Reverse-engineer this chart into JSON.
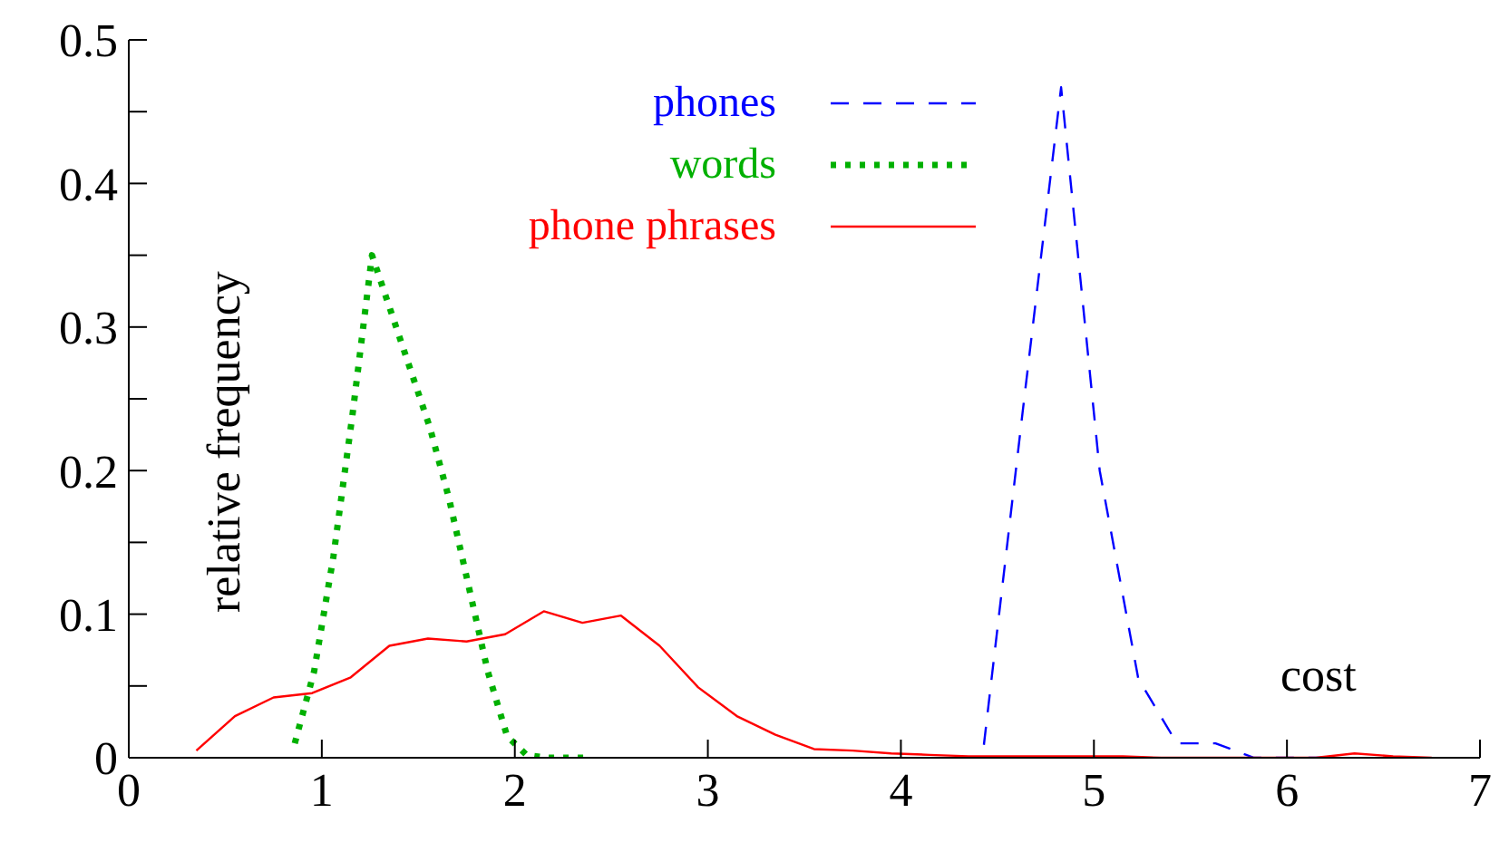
{
  "chart_data": {
    "type": "line",
    "xlabel": "cost",
    "ylabel": "relative frequency",
    "xlim": [
      0,
      7
    ],
    "xticks": [
      0,
      1,
      2,
      3,
      4,
      5,
      6,
      7
    ],
    "ylim": [
      0,
      0.5
    ],
    "yticks": [
      0,
      {
        "value": 0.05,
        "label": null
      },
      0.1,
      {
        "value": 0.15,
        "label": null
      },
      0.2,
      {
        "value": 0.25,
        "label": null
      },
      0.3,
      {
        "value": 0.35,
        "label": null
      },
      0.4,
      {
        "value": 0.45,
        "label": null
      },
      0.5
    ],
    "grid": false,
    "legend": "top",
    "marker": "none",
    "series": [
      {
        "name": "phones",
        "color": "#0000ff",
        "line_style": "dashed",
        "x": [
          4.43,
          4.63,
          4.83,
          5.03,
          5.23,
          5.43,
          5.63,
          5.83,
          6.03,
          6.23
        ],
        "values": [
          0.009,
          0.24,
          0.467,
          0.2,
          0.055,
          0.01,
          0.01,
          0,
          0,
          0
        ]
      },
      {
        "name": "words",
        "color": "#00b000",
        "line_style": "dotted",
        "x": [
          0.86,
          0.96,
          1.06,
          1.16,
          1.26,
          1.36,
          1.46,
          1.56,
          1.66,
          1.76,
          1.86,
          1.96,
          2.06,
          2.16,
          2.26,
          2.36
        ],
        "values": [
          0.01,
          0.06,
          0.14,
          0.24,
          0.35,
          0.31,
          0.27,
          0.23,
          0.18,
          0.12,
          0.06,
          0.015,
          0.002,
          0,
          0,
          0
        ]
      },
      {
        "name": "phone phrases",
        "color": "#ff0000",
        "line_style": "solid",
        "x": [
          0.35,
          0.55,
          0.75,
          0.95,
          1.15,
          1.35,
          1.55,
          1.75,
          1.95,
          2.15,
          2.35,
          2.55,
          2.75,
          2.95,
          3.15,
          3.35,
          3.55,
          3.75,
          3.95,
          4.15,
          4.35,
          4.55,
          4.75,
          4.95,
          5.15,
          5.35,
          5.55,
          5.75,
          5.95,
          6.15,
          6.35,
          6.55,
          6.75
        ],
        "values": [
          0.005,
          0.029,
          0.042,
          0.045,
          0.056,
          0.078,
          0.083,
          0.081,
          0.086,
          0.102,
          0.094,
          0.099,
          0.078,
          0.049,
          0.029,
          0.016,
          0.006,
          0.005,
          0.003,
          0.002,
          0.001,
          0.001,
          0.001,
          0.001,
          0.001,
          0,
          0,
          0,
          0,
          0,
          0.003,
          0.001,
          0
        ]
      }
    ]
  }
}
